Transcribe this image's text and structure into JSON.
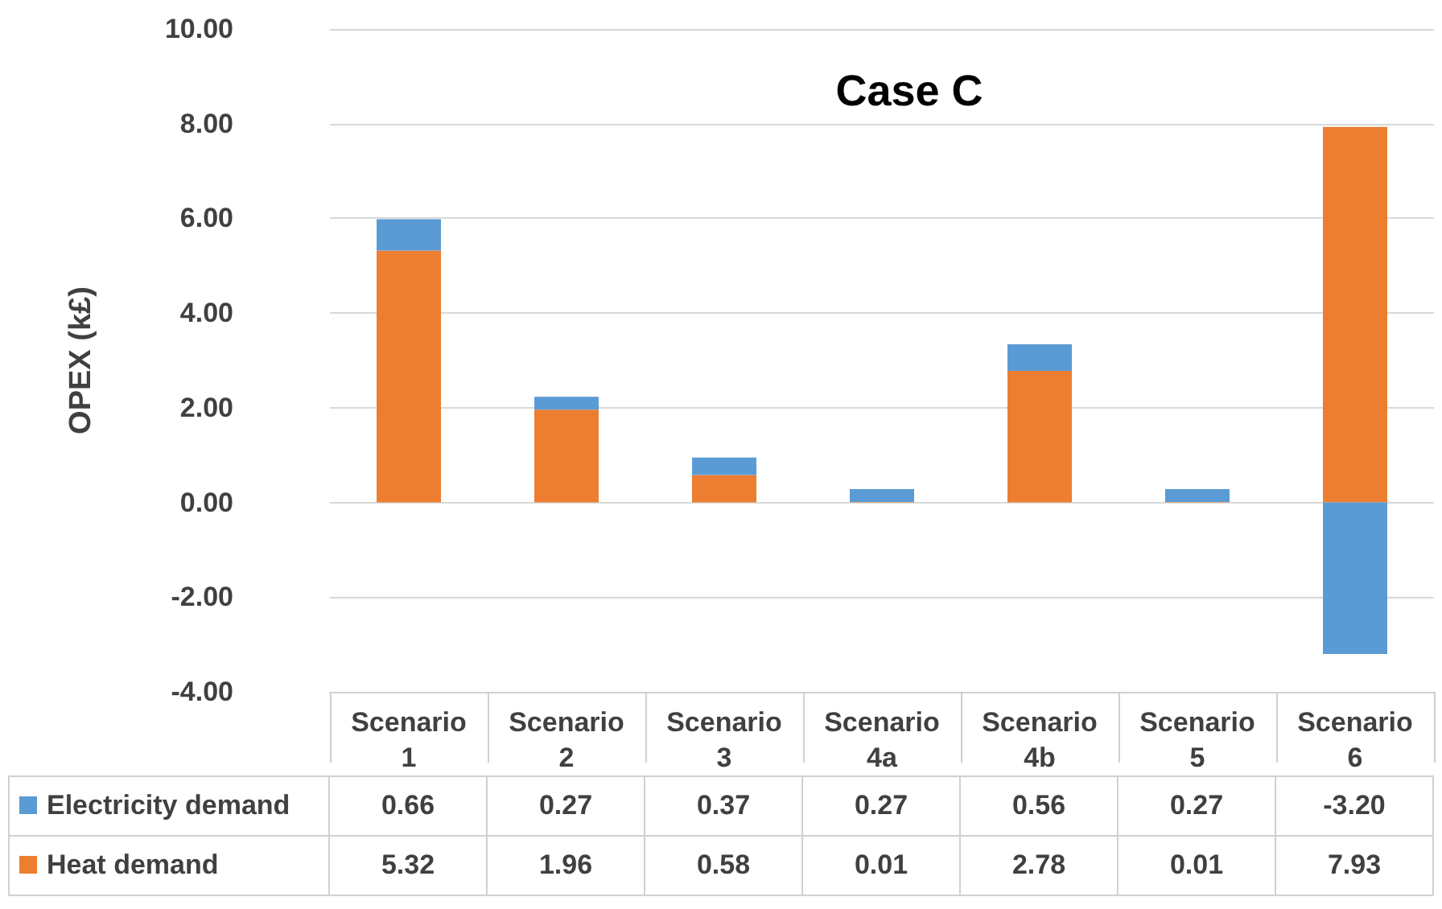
{
  "chart_data": {
    "type": "bar",
    "title": "Case C",
    "ylabel": "OPEX (k£)",
    "categories": [
      "Scenario 1",
      "Scenario 2",
      "Scenario 3",
      "Scenario 4a",
      "Scenario 4b",
      "Scenario 5",
      "Scenario 6"
    ],
    "series": [
      {
        "name": "Heat demand",
        "color": "#ed7d31",
        "values": [
          5.32,
          1.96,
          0.58,
          0.01,
          2.78,
          0.01,
          7.93
        ],
        "value_labels": [
          "5.32",
          "1.96",
          "0.58",
          "0.01",
          "2.78",
          "0.01",
          "7.93"
        ]
      },
      {
        "name": "Electricity demand",
        "color": "#5b9bd5",
        "values": [
          0.66,
          0.27,
          0.37,
          0.27,
          0.56,
          0.27,
          -3.2
        ],
        "value_labels": [
          "0.66",
          "0.27",
          "0.37",
          "0.27",
          "0.56",
          "0.27",
          "-3.20"
        ]
      }
    ],
    "stacked": true,
    "ylim": [
      -4,
      10
    ],
    "yticks": [
      {
        "value": -4,
        "label": "-4.00"
      },
      {
        "value": -2,
        "label": "-2.00"
      },
      {
        "value": 0,
        "label": "0.00"
      },
      {
        "value": 2,
        "label": "2.00"
      },
      {
        "value": 4,
        "label": "4.00"
      },
      {
        "value": 6,
        "label": "6.00"
      },
      {
        "value": 8,
        "label": "8.00"
      },
      {
        "value": 10,
        "label": "10.00"
      }
    ],
    "grid": "y",
    "legend": "bottom"
  }
}
